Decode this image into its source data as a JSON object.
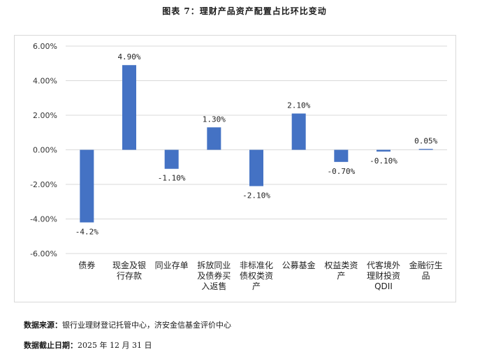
{
  "header": {
    "title": "图表 7：理财产品资产配置占比环比变动"
  },
  "chart_data": {
    "type": "bar",
    "title": "图表 7：理财产品资产配置占比环比变动",
    "categories": [
      [
        "债券"
      ],
      [
        "现金及银",
        "行存款"
      ],
      [
        "同业存单"
      ],
      [
        "拆放同业",
        "及债券买",
        "入返售"
      ],
      [
        "非标准化",
        "债权类资",
        "产"
      ],
      [
        "公募基金"
      ],
      [
        "权益类资",
        "产"
      ],
      [
        "代客境外",
        "理财投资",
        "QDII"
      ],
      [
        "金融衍生",
        "品"
      ]
    ],
    "values": [
      -4.2,
      4.9,
      -1.1,
      1.3,
      -2.1,
      2.1,
      -0.7,
      -0.1,
      0.05
    ],
    "data_labels": [
      "-4.2%",
      "4.90%",
      "-1.10%",
      "1.30%",
      "-2.10%",
      "2.10%",
      "-0.70%",
      "-0.10%",
      "0.05%"
    ],
    "ylim": [
      -6,
      6
    ],
    "yticks": [
      6,
      4,
      2,
      0,
      -2,
      -4,
      -6
    ],
    "ytick_labels": [
      "6.00%",
      "4.00%",
      "2.00%",
      "0.00%",
      "-2.00%",
      "-4.00%",
      "-6.00%"
    ],
    "bar_color": "#4472C4",
    "gridlines": true,
    "legend": "none"
  },
  "footer": {
    "source_label": "数据来源：",
    "source_text": "银行业理财登记托管中心，济安金信基金评价中心",
    "date_label": "数据截止日期：",
    "date_text": "2025 年 12 月 31 日"
  }
}
